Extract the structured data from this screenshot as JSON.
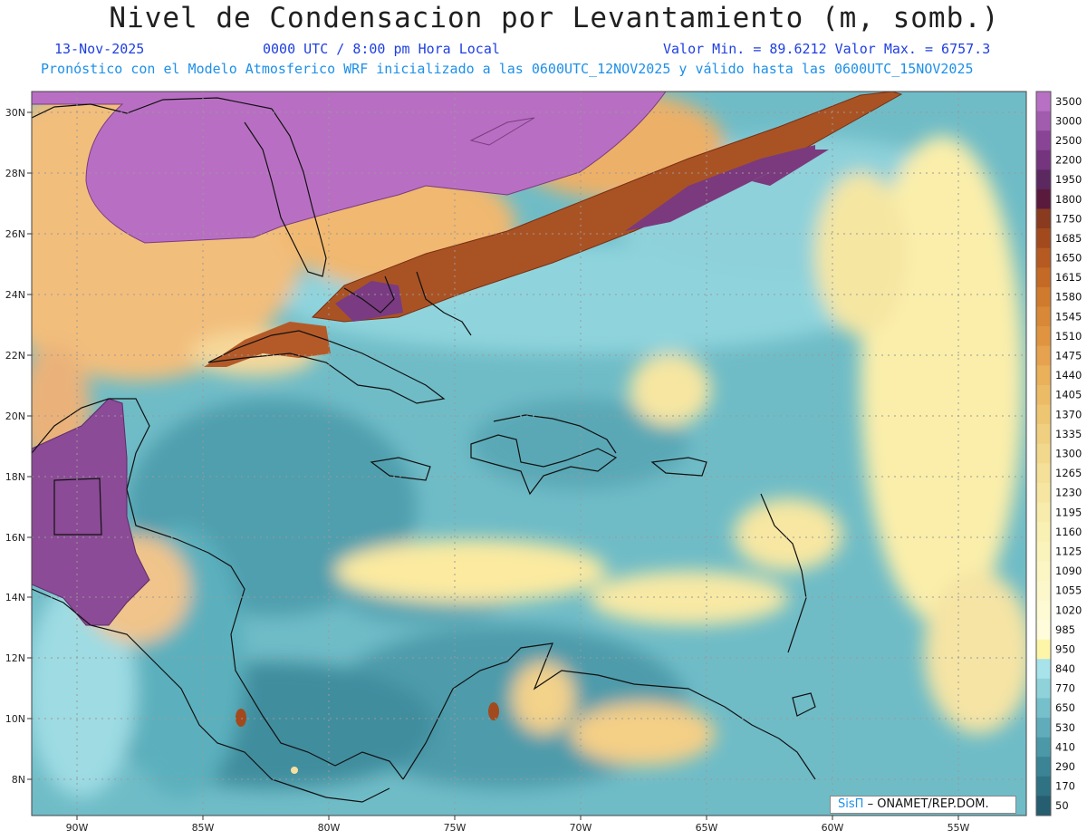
{
  "header": {
    "title": "Nivel de Condensacion por Levantamiento (m, somb.)",
    "date": "13-Nov-2025",
    "time": "0000 UTC / 8:00 pm Hora Local",
    "range": "Valor Min. = 89.6212  Valor Max. = 6757.3",
    "forecast": "Pronóstico con el Modelo Atmosferico WRF inicializado a las 0600UTC_12NOV2025 y válido hasta las  0600UTC_15NOV2025"
  },
  "map": {
    "lon_range": [
      -92,
      -52.5
    ],
    "lat_range": [
      6.8,
      30.6
    ],
    "lon_ticks": [
      "90W",
      "85W",
      "80W",
      "75W",
      "70W",
      "65W",
      "60W",
      "55W"
    ],
    "lat_ticks": [
      "30N",
      "28N",
      "26N",
      "24N",
      "22N",
      "20N",
      "18N",
      "16N",
      "14N",
      "12N",
      "10N",
      "8N"
    ]
  },
  "colorbar": {
    "labels": [
      "3500",
      "3000",
      "2500",
      "2200",
      "1950",
      "1800",
      "1750",
      "1685",
      "1650",
      "1615",
      "1580",
      "1545",
      "1510",
      "1475",
      "1440",
      "1405",
      "1370",
      "1335",
      "1300",
      "1265",
      "1230",
      "1195",
      "1160",
      "1125",
      "1090",
      "1055",
      "1020",
      "985",
      "950",
      "840",
      "770",
      "650",
      "530",
      "410",
      "290",
      "170",
      "50"
    ],
    "colors": [
      "#b870c4",
      "#a25cae",
      "#8a4496",
      "#74347e",
      "#5c2860",
      "#5a1a3e",
      "#8a3a1e",
      "#a24a1e",
      "#b55a20",
      "#c46a26",
      "#cf7a2c",
      "#d88836",
      "#e09440",
      "#e6a24e",
      "#eab05a",
      "#ecbb66",
      "#eec672",
      "#f0cf80",
      "#f2d88c",
      "#f4e098",
      "#f6e6a2",
      "#f8ecac",
      "#f9f0b4",
      "#faf3bc",
      "#fbf6c4",
      "#fcf8cc",
      "#fdfad4",
      "#fefcda",
      "#fdf6a8",
      "#a8e2ea",
      "#8fd2da",
      "#76c0cc",
      "#60acba",
      "#4a98a8",
      "#3a8496",
      "#2e7284",
      "#245e70"
    ]
  },
  "credit": {
    "brand": "SisΠ",
    "org": "– ONAMET/REP.DOM."
  }
}
